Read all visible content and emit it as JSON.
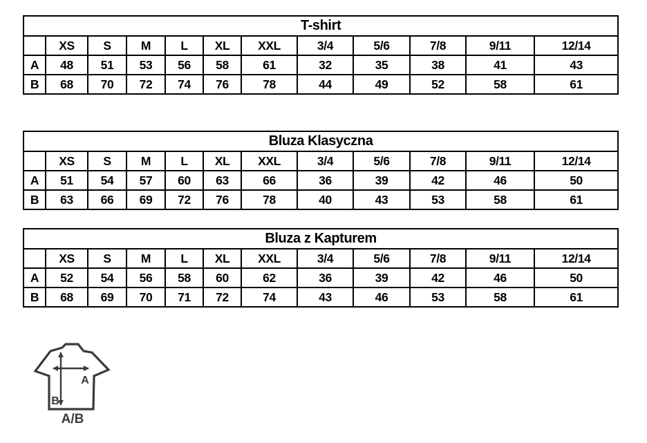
{
  "colors": {
    "ink": "#000000",
    "diagram_ink": "#3a3a3a"
  },
  "tables": [
    {
      "title": "T-shirt",
      "corner_label": "",
      "columns": [
        "XS",
        "S",
        "M",
        "L",
        "XL",
        "XXL",
        "3/4",
        "5/6",
        "7/8",
        "9/11",
        "12/14"
      ],
      "rows": [
        {
          "label": "A",
          "values": [
            "48",
            "51",
            "53",
            "56",
            "58",
            "61",
            "32",
            "35",
            "38",
            "41",
            "43"
          ]
        },
        {
          "label": "B",
          "values": [
            "68",
            "70",
            "72",
            "74",
            "76",
            "78",
            "44",
            "49",
            "52",
            "58",
            "61"
          ]
        }
      ]
    },
    {
      "title": "Bluza Klasyczna",
      "corner_label": "",
      "columns": [
        "XS",
        "S",
        "M",
        "L",
        "XL",
        "XXL",
        "3/4",
        "5/6",
        "7/8",
        "9/11",
        "12/14"
      ],
      "rows": [
        {
          "label": "A",
          "values": [
            "51",
            "54",
            "57",
            "60",
            "63",
            "66",
            "36",
            "39",
            "42",
            "46",
            "50"
          ]
        },
        {
          "label": "B",
          "values": [
            "63",
            "66",
            "69",
            "72",
            "76",
            "78",
            "40",
            "43",
            "53",
            "58",
            "61"
          ]
        }
      ]
    },
    {
      "title": "Bluza z Kapturem",
      "corner_label": "",
      "columns": [
        "XS",
        "S",
        "M",
        "L",
        "XL",
        "XXL",
        "3/4",
        "5/6",
        "7/8",
        "9/11",
        "12/14"
      ],
      "rows": [
        {
          "label": "A",
          "values": [
            "52",
            "54",
            "56",
            "58",
            "60",
            "62",
            "36",
            "39",
            "42",
            "46",
            "50"
          ]
        },
        {
          "label": "B",
          "values": [
            "68",
            "69",
            "70",
            "71",
            "72",
            "74",
            "43",
            "46",
            "53",
            "58",
            "61"
          ]
        }
      ]
    }
  ],
  "diagram": {
    "width_label": "A",
    "length_label": "B",
    "caption": "A/B"
  }
}
